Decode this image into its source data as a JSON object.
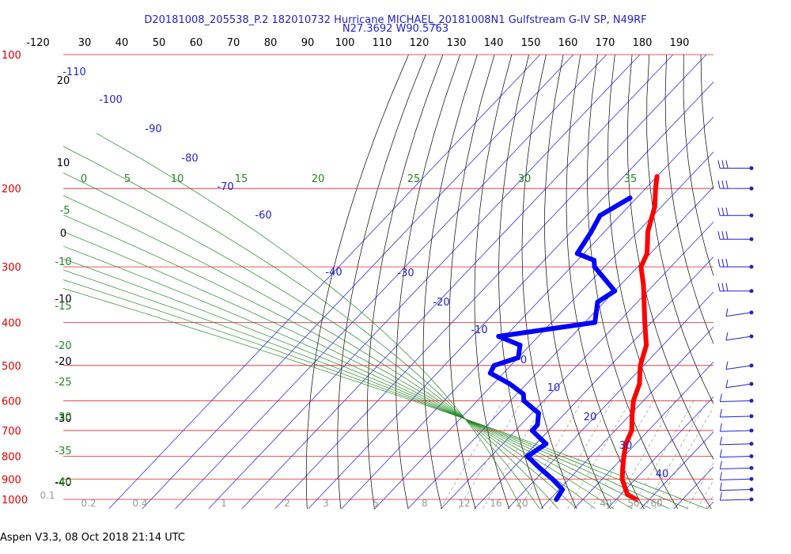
{
  "header": {
    "title_line1": "D20181008_205538_P.2 182010732 Hurricane MICHAEL_20181008N1 Gulfstream G-IV SP, N49RF",
    "title_line2": "N27.3692 W90.5763"
  },
  "footer": {
    "text": "Aspen V3.3, 08 Oct 2018  21:14 UTC"
  },
  "chart_data": {
    "type": "skew-t",
    "top_axis_ticks": [
      "-120",
      "30",
      "40",
      "50",
      "60",
      "70",
      "80",
      "90",
      "100",
      "110",
      "120",
      "130",
      "140",
      "150",
      "160",
      "170",
      "180",
      "190"
    ],
    "pressure_labels": [
      "100",
      "200",
      "300",
      "400",
      "500",
      "600",
      "700",
      "800",
      "900",
      "1000"
    ],
    "temperature_labels": [
      "-110",
      "-100",
      "-90",
      "-80",
      "-70",
      "-60",
      "-40",
      "-30",
      "-20",
      "-10",
      "0",
      "10",
      "20",
      "30",
      "40"
    ],
    "moist_adiabat_labels": [
      "0",
      "5",
      "10",
      "15",
      "20",
      "25",
      "30",
      "35"
    ],
    "dry_adiabat_labels": [
      "20",
      "10",
      "0",
      "-10",
      "-20",
      "-30",
      "-40"
    ],
    "mixing_ratio_labels": [
      "-5",
      "-10",
      "-15",
      "-20",
      "-25",
      "-30",
      "-35",
      "-40"
    ],
    "bottom_labels": [
      "0.1",
      "0.2",
      "0.4",
      "1",
      "2",
      "3",
      "5",
      "8",
      "12",
      "16",
      "20",
      "40",
      "50",
      "60"
    ],
    "temperature_profile": {
      "color": "#ff0000",
      "pressure": [
        188,
        200,
        220,
        250,
        280,
        300,
        330,
        360,
        400,
        450,
        500,
        550,
        600,
        650,
        700,
        750,
        800,
        850,
        900,
        950,
        975,
        1000
      ],
      "temperature": [
        -60,
        -57,
        -52,
        -47,
        -41,
        -39,
        -33,
        -28,
        -22,
        -15,
        -11,
        -6,
        -3,
        1,
        5,
        7,
        10,
        13,
        16,
        20,
        22,
        26
      ]
    },
    "dewpoint_profile": {
      "color": "#0000ff",
      "pressure": [
        210,
        230,
        250,
        280,
        290,
        300,
        340,
        360,
        400,
        430,
        450,
        480,
        500,
        520,
        550,
        580,
        600,
        640,
        680,
        700,
        750,
        800,
        850,
        900,
        950,
        1000
      ],
      "dewpoint": [
        -62,
        -66,
        -64,
        -62,
        -55,
        -53,
        -40,
        -42,
        -37,
        -62,
        -53,
        -50,
        -55,
        -54,
        -45,
        -38,
        -36,
        -28,
        -25,
        -25,
        -17,
        -19,
        -12,
        -5,
        1,
        2
      ]
    },
    "wind_barbs_pressure": [
      180,
      200,
      230,
      260,
      300,
      340,
      380,
      430,
      500,
      550,
      600,
      650,
      700,
      750,
      800,
      850,
      900,
      950,
      1000
    ]
  }
}
